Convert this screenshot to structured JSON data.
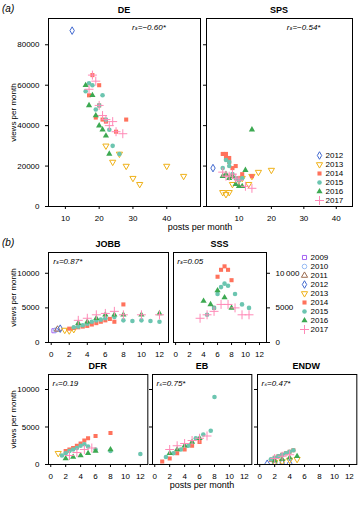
{
  "chart_data": [
    {
      "type": "scatter",
      "title": "DE",
      "xlabel": "posts per month",
      "ylabel": "views per month",
      "annotations": [
        "(a)",
        "rₛ=−0.60*"
      ],
      "xlim": [
        5,
        50
      ],
      "ylim": [
        0,
        93000
      ],
      "xticks": [
        10,
        20,
        30,
        40
      ],
      "yticks": [
        0,
        20000,
        40000,
        60000,
        80000
      ],
      "series": [
        {
          "name": "2012",
          "marker": "diamond-open",
          "x": [
            12
          ],
          "values": [
            87000
          ]
        },
        {
          "name": "2013",
          "marker": "triangle-down-open",
          "x": [
            22,
            24,
            26,
            28,
            30,
            32,
            40,
            45
          ],
          "values": [
            30000,
            22000,
            26000,
            20000,
            14000,
            11000,
            20000,
            15000
          ]
        },
        {
          "name": "2014",
          "marker": "square",
          "x": [
            17,
            18,
            19,
            20,
            20,
            21,
            22,
            25,
            28
          ],
          "values": [
            55000,
            65000,
            44000,
            60000,
            50000,
            43000,
            42000,
            37000,
            43000
          ]
        },
        {
          "name": "2015",
          "marker": "circle",
          "x": [
            16,
            17,
            18,
            19,
            20,
            21,
            22,
            23,
            24,
            26
          ],
          "values": [
            57000,
            61000,
            60000,
            48000,
            50000,
            55000,
            43000,
            38000,
            30000,
            26000
          ]
        },
        {
          "name": "2016",
          "marker": "triangle",
          "x": [
            16,
            17,
            18,
            19,
            20,
            21,
            22,
            23
          ],
          "values": [
            60000,
            50000,
            55000,
            45000,
            40000,
            38000,
            35000,
            26000
          ]
        },
        {
          "name": "2017",
          "marker": "plus",
          "x": [
            17,
            18,
            19,
            20,
            21,
            22,
            23,
            24,
            25,
            27
          ],
          "values": [
            58000,
            65000,
            62000,
            50000,
            45000,
            43000,
            40000,
            42000,
            37000,
            36000
          ]
        }
      ]
    },
    {
      "type": "scatter",
      "title": "SPS",
      "annotations": [
        "rₛ=−0.54*"
      ],
      "tick_labels": "x",
      "legend": "lower right",
      "xlim": [
        0,
        45
      ],
      "ylim": [
        0,
        93000
      ],
      "xticks": [
        10,
        20,
        30,
        40
      ],
      "yticks": [
        0,
        20000,
        40000,
        60000,
        80000
      ],
      "series": [
        {
          "name": "2012",
          "marker": "diamond-open",
          "x": [
            2
          ],
          "values": [
            19000
          ]
        },
        {
          "name": "2013",
          "marker": "triangle-down-open",
          "x": [
            5,
            6,
            7,
            8,
            10,
            11,
            13,
            14,
            16,
            20
          ],
          "values": [
            7000,
            6000,
            7000,
            11000,
            13000,
            14000,
            11000,
            15000,
            17000,
            18000
          ]
        },
        {
          "name": "2014",
          "marker": "square",
          "x": [
            5,
            6,
            6,
            7,
            7,
            8,
            9,
            10,
            11,
            14
          ],
          "values": [
            26000,
            26000,
            24000,
            22000,
            24000,
            19000,
            20000,
            14000,
            16000,
            15000
          ]
        },
        {
          "name": "2015",
          "marker": "circle",
          "x": [
            5,
            6,
            7,
            7,
            8,
            9,
            10,
            11
          ],
          "values": [
            19000,
            23000,
            20000,
            22000,
            16000,
            14000,
            13000,
            14000
          ]
        },
        {
          "name": "2016",
          "marker": "triangle",
          "x": [
            5,
            6,
            7,
            8,
            9,
            10,
            11,
            12,
            14
          ],
          "values": [
            15000,
            16000,
            14000,
            15000,
            11000,
            10000,
            10000,
            18000,
            38000
          ]
        },
        {
          "name": "2017",
          "marker": "plus",
          "x": [
            5,
            6,
            7,
            8,
            9,
            10,
            12,
            14
          ],
          "values": [
            17000,
            15000,
            15000,
            16000,
            14000,
            13000,
            10000,
            9000
          ]
        }
      ]
    },
    {
      "type": "scatter",
      "title": "JOBB",
      "ylabel": "views per month",
      "annotations": [
        "(b)",
        "rₛ=0.87*"
      ],
      "xlim": [
        -0.3,
        13
      ],
      "ylim": [
        0,
        13000
      ],
      "xticks": [
        0,
        2,
        4,
        6,
        8,
        10,
        12
      ],
      "yticks": [
        0,
        5000,
        10000
      ],
      "series": [
        {
          "name": "2009",
          "marker": "square-open",
          "x": [
            0.3
          ],
          "values": [
            1700
          ]
        },
        {
          "name": "2010",
          "marker": "circle-open",
          "x": [
            0.5
          ],
          "values": [
            1800
          ]
        },
        {
          "name": "2011",
          "marker": "triangle-open",
          "x": [
            0.7
          ],
          "values": [
            1900
          ]
        },
        {
          "name": "2012",
          "marker": "diamond-open",
          "x": [
            1.0
          ],
          "values": [
            2000
          ]
        },
        {
          "name": "2013",
          "marker": "triangle-down-open",
          "x": [
            1.5,
            2.0,
            2.5
          ],
          "values": [
            1800,
            1700,
            1900
          ]
        },
        {
          "name": "2014",
          "marker": "square",
          "x": [
            2.0,
            2.5,
            3.0,
            3.5,
            4.0,
            4.5,
            5.0,
            5.5,
            6.0,
            6.5,
            7.0,
            8.0
          ],
          "values": [
            2000,
            2100,
            2200,
            2300,
            2400,
            2600,
            2800,
            3000,
            3200,
            3400,
            3000,
            5500
          ]
        },
        {
          "name": "2015",
          "marker": "circle",
          "x": [
            2.5,
            3.0,
            3.5,
            4.0,
            4.5,
            5.0,
            5.5,
            6.0,
            7.0,
            8.0,
            9.0,
            10.0,
            11.0,
            12.0
          ],
          "values": [
            2200,
            2300,
            2500,
            2700,
            3000,
            3200,
            3300,
            3500,
            3700,
            3200,
            3100,
            3200,
            3100,
            3000
          ]
        },
        {
          "name": "2016",
          "marker": "triangle",
          "x": [
            3.0,
            4.0,
            5.0,
            6.0,
            7.0,
            8.0,
            10.0,
            12.0
          ],
          "values": [
            2800,
            3000,
            3500,
            4000,
            4000,
            4000,
            4000,
            4200
          ]
        },
        {
          "name": "2017",
          "marker": "plus",
          "x": [
            3.0,
            4.0,
            5.0,
            6.0,
            7.0,
            8.0,
            10.0,
            12.0
          ],
          "values": [
            3200,
            3500,
            4000,
            4200,
            4500,
            4000,
            4000,
            4000
          ]
        }
      ]
    },
    {
      "type": "scatter",
      "title": "SSS",
      "annotations": [
        "rₛ=0.05"
      ],
      "legend": "right",
      "xlim": [
        -0.3,
        13
      ],
      "ylim": [
        0,
        13000
      ],
      "xticks": [
        0,
        2,
        4,
        6,
        8,
        10,
        12
      ],
      "yticks": [
        0,
        5000,
        {
          "value": 10000,
          "label": "10 000"
        }
      ],
      "series": [
        {
          "name": "2014",
          "marker": "square",
          "x": [
            5.5,
            6.0,
            6.5,
            7.0,
            7.5,
            8.0
          ],
          "values": [
            5000,
            9500,
            10500,
            11000,
            10500,
            9000
          ]
        },
        {
          "name": "2015",
          "marker": "circle",
          "x": [
            4.5,
            5.5,
            6.0,
            6.5,
            7.0,
            7.5,
            8.5,
            9.5,
            10.5
          ],
          "values": [
            4000,
            5000,
            7000,
            8000,
            8500,
            8200,
            7000,
            5500,
            5000
          ]
        },
        {
          "name": "2016",
          "marker": "triangle",
          "x": [
            4.0,
            5.0,
            6.0,
            7.0,
            8.0
          ],
          "values": [
            6000,
            5500,
            7500,
            6500,
            5000
          ]
        },
        {
          "name": "2017",
          "marker": "plus",
          "x": [
            3.5,
            4.5,
            5.5,
            6.5,
            7.5,
            8.5,
            9.5,
            10.5
          ],
          "values": [
            3500,
            4000,
            4500,
            5500,
            5500,
            5000,
            4000,
            4000
          ]
        }
      ]
    },
    {
      "type": "scatter",
      "title": "DFR",
      "xlabel": "posts per month",
      "ylabel": "views per month",
      "annotations": [
        "rₛ=0.19"
      ],
      "xlim": [
        -0.3,
        13
      ],
      "ylim": [
        0,
        12000
      ],
      "xticks": [
        0,
        2,
        4,
        6,
        8,
        10,
        12
      ],
      "yticks": [
        0,
        5000,
        10000
      ],
      "series": [
        {
          "name": "2013",
          "marker": "triangle-down-open",
          "x": [
            1.0
          ],
          "values": [
            1500
          ]
        },
        {
          "name": "2014",
          "marker": "square",
          "x": [
            2.0,
            2.5,
            3.0,
            3.5,
            4.0,
            4.5,
            5.0,
            6.0,
            8.0
          ],
          "values": [
            1800,
            2000,
            2200,
            2500,
            2800,
            3200,
            3500,
            3800,
            4200
          ]
        },
        {
          "name": "2015",
          "marker": "circle",
          "x": [
            1.5,
            2.0,
            2.5,
            3.0,
            3.5,
            4.0,
            4.5,
            5.0,
            6.0,
            8.0,
            12.0
          ],
          "values": [
            1200,
            1500,
            1800,
            2000,
            2200,
            2500,
            2700,
            2400,
            2000,
            1800,
            1400
          ]
        },
        {
          "name": "2016",
          "marker": "triangle",
          "x": [
            2.0,
            3.0,
            4.0,
            5.0,
            6.0,
            8.0
          ],
          "values": [
            800,
            1000,
            1200,
            1500,
            1800,
            2000
          ]
        },
        {
          "name": "2017",
          "marker": "plus",
          "x": [
            2.5,
            3.5,
            4.5,
            5.5
          ],
          "values": [
            1200,
            1600,
            2000,
            2200
          ]
        }
      ]
    },
    {
      "type": "scatter",
      "title": "EB",
      "annotations": [
        "rₛ=0.75*"
      ],
      "tick_labels": "x",
      "xlim": [
        -0.3,
        13
      ],
      "ylim": [
        0,
        12000
      ],
      "xticks": [
        0,
        2,
        4,
        6,
        8,
        10,
        12
      ],
      "yticks": [
        0,
        5000,
        10000
      ],
      "series": [
        {
          "name": "2014",
          "marker": "square",
          "x": [
            1.0,
            2.0,
            3.0,
            4.0,
            5.0,
            6.0
          ],
          "values": [
            400,
            800,
            1500,
            2000,
            2500,
            3000
          ]
        },
        {
          "name": "2015",
          "marker": "circle",
          "x": [
            1.5,
            2.5,
            3.5,
            4.5,
            5.5,
            6.5,
            7.5,
            8.0
          ],
          "values": [
            1000,
            1500,
            2000,
            2500,
            3500,
            4000,
            4500,
            9000
          ]
        },
        {
          "name": "2016",
          "marker": "triangle",
          "x": [
            2.0,
            3.0,
            4.0,
            5.0,
            6.0
          ],
          "values": [
            1500,
            2000,
            2500,
            3000,
            3500
          ]
        },
        {
          "name": "2017",
          "marker": "plus",
          "x": [
            2.0,
            3.0,
            4.0,
            5.0,
            6.0,
            7.0
          ],
          "values": [
            2000,
            2500,
            2800,
            3200,
            3500,
            3800
          ]
        }
      ]
    },
    {
      "type": "scatter",
      "title": "ENDW",
      "annotations": [
        "rₛ=0.47*"
      ],
      "tick_labels": "x",
      "xlim": [
        -0.3,
        13
      ],
      "ylim": [
        0,
        12000
      ],
      "xticks": [
        0,
        2,
        4,
        6,
        8,
        10,
        12
      ],
      "yticks": [
        0,
        5000,
        10000
      ],
      "series": [
        {
          "name": "2012",
          "marker": "diamond-open",
          "x": [
            1.0,
            2.0,
            3.0,
            4.0
          ],
          "values": [
            100,
            150,
            200,
            150
          ]
        },
        {
          "name": "2013",
          "marker": "triangle-down-open",
          "x": [
            2.0,
            3.0,
            4.0,
            5.0
          ],
          "values": [
            300,
            400,
            600,
            700
          ]
        },
        {
          "name": "2014",
          "marker": "square",
          "x": [
            1.5,
            2.0,
            2.5,
            3.0,
            3.5,
            4.0,
            4.5
          ],
          "values": [
            600,
            900,
            1100,
            1300,
            1500,
            1700,
            1900
          ]
        },
        {
          "name": "2015",
          "marker": "circle",
          "x": [
            1.5,
            2.0,
            2.5,
            3.0,
            3.5,
            4.0,
            4.5
          ],
          "values": [
            700,
            900,
            1100,
            1300,
            1500,
            1700,
            1900
          ]
        },
        {
          "name": "2016",
          "marker": "triangle",
          "x": [
            2.0,
            3.0,
            4.0,
            5.0
          ],
          "values": [
            500,
            700,
            900,
            1100
          ]
        },
        {
          "name": "2017",
          "marker": "plus",
          "x": [
            2.0,
            3.0,
            4.0
          ],
          "values": [
            800,
            1100,
            1300
          ]
        }
      ]
    }
  ]
}
